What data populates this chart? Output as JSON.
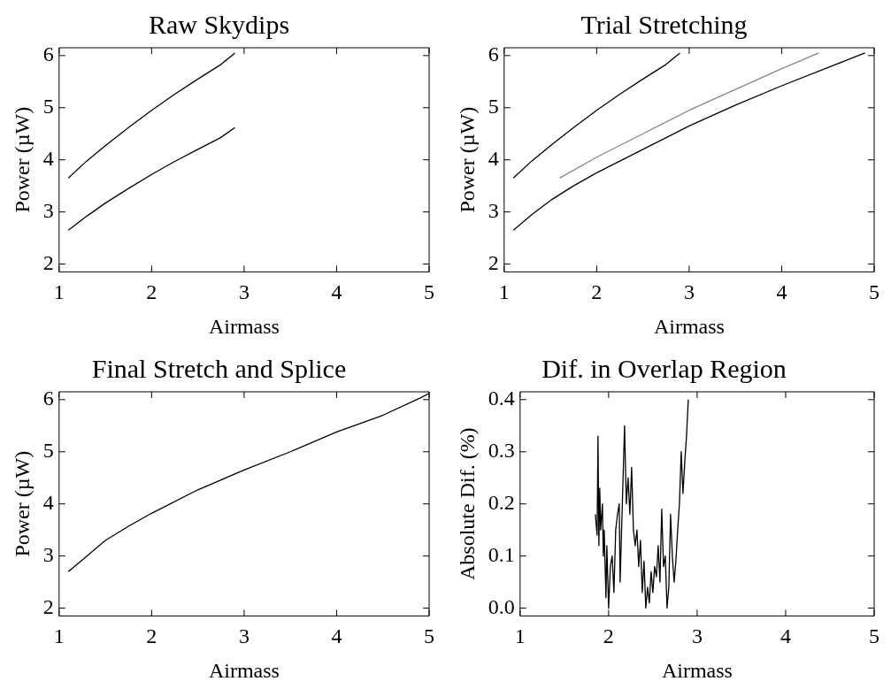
{
  "chart_data": [
    {
      "type": "line",
      "title": "Raw Skydips",
      "xlabel": "Airmass",
      "ylabel": "Power (µW)",
      "xlim": [
        1,
        5
      ],
      "xticks": [
        1,
        2,
        3,
        4,
        5
      ],
      "ylim": [
        1.85,
        6.15
      ],
      "yticks": [
        2,
        3,
        4,
        5,
        6
      ],
      "series": [
        {
          "color": "#000000",
          "x": [
            1.1,
            1.3,
            1.5,
            1.75,
            2.0,
            2.25,
            2.5,
            2.75,
            2.9
          ],
          "values": [
            3.65,
            3.98,
            4.27,
            4.62,
            4.95,
            5.26,
            5.55,
            5.83,
            6.05
          ]
        },
        {
          "color": "#000000",
          "x": [
            1.1,
            1.3,
            1.5,
            1.75,
            2.0,
            2.25,
            2.5,
            2.75,
            2.9
          ],
          "values": [
            2.65,
            2.92,
            3.17,
            3.45,
            3.72,
            3.97,
            4.2,
            4.43,
            4.62
          ]
        }
      ]
    },
    {
      "type": "line",
      "title": "Trial Stretching",
      "xlabel": "Airmass",
      "ylabel": "Power (µW)",
      "xlim": [
        1,
        5
      ],
      "xticks": [
        1,
        2,
        3,
        4,
        5
      ],
      "ylim": [
        1.85,
        6.15
      ],
      "yticks": [
        2,
        3,
        4,
        5,
        6
      ],
      "series": [
        {
          "color": "#000000",
          "x": [
            1.1,
            1.3,
            1.5,
            1.75,
            2.0,
            2.25,
            2.5,
            2.75,
            2.9
          ],
          "values": [
            3.65,
            3.98,
            4.27,
            4.62,
            4.95,
            5.26,
            5.55,
            5.83,
            6.05
          ]
        },
        {
          "color": "#000000",
          "x": [
            1.1,
            1.3,
            1.5,
            1.75,
            2.0,
            2.5,
            3.0,
            3.5,
            4.0,
            4.5,
            4.9
          ],
          "values": [
            2.65,
            2.95,
            3.22,
            3.5,
            3.75,
            4.2,
            4.65,
            5.05,
            5.42,
            5.77,
            6.05
          ]
        },
        {
          "color": "#888888",
          "x": [
            1.6,
            2.0,
            2.5,
            3.0,
            3.5,
            4.0,
            4.4
          ],
          "values": [
            3.65,
            4.05,
            4.5,
            4.95,
            5.35,
            5.75,
            6.05
          ]
        }
      ]
    },
    {
      "type": "line",
      "title": "Final Stretch and Splice",
      "xlabel": "Airmass",
      "ylabel": "Power (µW)",
      "xlim": [
        1,
        5
      ],
      "xticks": [
        1,
        2,
        3,
        4,
        5
      ],
      "ylim": [
        1.85,
        6.15
      ],
      "yticks": [
        2,
        3,
        4,
        5,
        6
      ],
      "series": [
        {
          "color": "#000000",
          "x": [
            1.1,
            1.3,
            1.5,
            1.75,
            2.0,
            2.5,
            3.0,
            3.5,
            4.0,
            4.5,
            4.9,
            5.0
          ],
          "values": [
            2.7,
            3.0,
            3.3,
            3.57,
            3.82,
            4.27,
            4.65,
            5.0,
            5.38,
            5.7,
            6.03,
            6.12
          ]
        }
      ]
    },
    {
      "type": "line",
      "title": "Dif. in Overlap Region",
      "xlabel": "Airmass",
      "ylabel": "Absolute Dif. (%)",
      "xlim": [
        1,
        5
      ],
      "xticks": [
        1,
        2,
        3,
        4,
        5
      ],
      "ylim": [
        -0.015,
        0.415
      ],
      "yticks": [
        {
          "value": 0,
          "label": "0.0"
        },
        0.1,
        0.2,
        0.3,
        0.4
      ],
      "series": [
        {
          "color": "#000000",
          "x": [
            1.85,
            1.87,
            1.88,
            1.89,
            1.9,
            1.91,
            1.93,
            1.94,
            1.95,
            1.97,
            1.98,
            2.0,
            2.02,
            2.04,
            2.06,
            2.08,
            2.1,
            2.12,
            2.13,
            2.15,
            2.18,
            2.2,
            2.22,
            2.24,
            2.26,
            2.28,
            2.3,
            2.32,
            2.34,
            2.36,
            2.38,
            2.4,
            2.42,
            2.44,
            2.46,
            2.48,
            2.5,
            2.52,
            2.54,
            2.56,
            2.58,
            2.6,
            2.62,
            2.64,
            2.66,
            2.68,
            2.7,
            2.72,
            2.74,
            2.76,
            2.78,
            2.8,
            2.82,
            2.84,
            2.86,
            2.88,
            2.9
          ],
          "values": [
            0.18,
            0.14,
            0.33,
            0.12,
            0.23,
            0.15,
            0.2,
            0.1,
            0.15,
            0.02,
            0.12,
            0.0,
            0.08,
            0.1,
            0.03,
            0.15,
            0.18,
            0.2,
            0.05,
            0.17,
            0.35,
            0.2,
            0.25,
            0.18,
            0.27,
            0.15,
            0.12,
            0.15,
            0.08,
            0.13,
            0.03,
            0.09,
            0.0,
            0.04,
            0.01,
            0.07,
            0.03,
            0.08,
            0.06,
            0.12,
            0.05,
            0.19,
            0.08,
            0.1,
            0.0,
            0.04,
            0.18,
            0.1,
            0.05,
            0.09,
            0.15,
            0.2,
            0.3,
            0.22,
            0.28,
            0.33,
            0.4
          ]
        }
      ]
    }
  ]
}
